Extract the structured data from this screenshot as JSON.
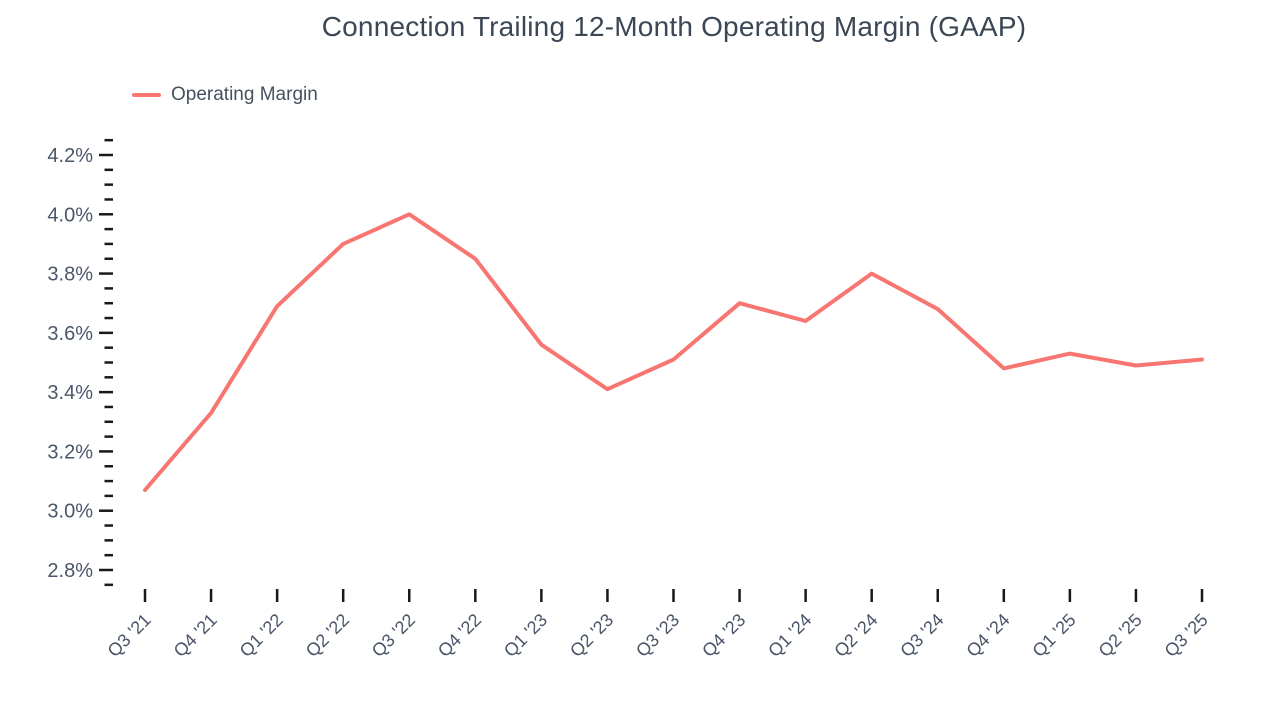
{
  "title": "Connection Trailing 12-Month Operating Margin (GAAP)",
  "legend": {
    "label": "Operating Margin",
    "color": "#f87671"
  },
  "chart_data": {
    "type": "line",
    "title": "Connection Trailing 12-Month Operating Margin (GAAP)",
    "xlabel": "",
    "ylabel": "",
    "categories": [
      "Q3 '21",
      "Q4 '21",
      "Q1 '22",
      "Q2 '22",
      "Q3 '22",
      "Q4 '22",
      "Q1 '23",
      "Q2 '23",
      "Q3 '23",
      "Q4 '23",
      "Q1 '24",
      "Q2 '24",
      "Q3 '24",
      "Q4 '24",
      "Q1 '25",
      "Q2 '25",
      "Q3 '25"
    ],
    "series": [
      {
        "name": "Operating Margin",
        "color": "#f87671",
        "values": [
          3.07,
          3.33,
          3.69,
          3.9,
          4.0,
          3.85,
          3.56,
          3.41,
          3.51,
          3.7,
          3.64,
          3.8,
          3.68,
          3.48,
          3.53,
          3.49,
          3.51
        ]
      }
    ],
    "unit": "%",
    "ylim": [
      2.75,
      4.25
    ],
    "y_major_ticks": [
      2.8,
      3.0,
      3.2,
      3.4,
      3.6,
      3.8,
      4.0,
      4.2
    ],
    "y_minor_step": 0.05,
    "y_tick_suffix": "%",
    "grid": false,
    "axis_lines": false,
    "legend_position": "top-left",
    "tick_color": "#16191d"
  }
}
